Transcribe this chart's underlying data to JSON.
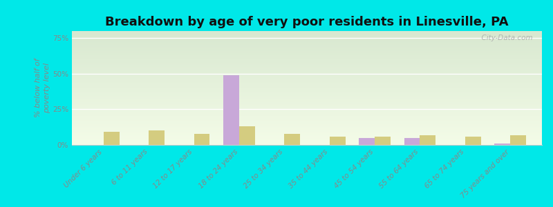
{
  "title": "Breakdown by age of very poor residents in Linesville, PA",
  "ylabel": "% below half of\npoverty level",
  "categories": [
    "Under 6 years",
    "6 to 11 years",
    "12 to 17 years",
    "18 to 24 years",
    "25 to 34 years",
    "35 to 44 years",
    "45 to 54 years",
    "55 to 64 years",
    "65 to 74 years",
    "75 years and over"
  ],
  "linesville_values": [
    0,
    0,
    0,
    49,
    0,
    0,
    5,
    5,
    0,
    1
  ],
  "pennsylvania_values": [
    9,
    10,
    8,
    13,
    8,
    6,
    6,
    7,
    6,
    7
  ],
  "linesville_color": "#c8a8d8",
  "pennsylvania_color": "#d4cc80",
  "bar_width": 0.35,
  "ylim": [
    0,
    80
  ],
  "yticks": [
    0,
    25,
    50,
    75
  ],
  "ytick_labels": [
    "0%",
    "25%",
    "50%",
    "75%"
  ],
  "background_color": "#00e8e8",
  "plot_bg_color_top": "#d8e8d0",
  "plot_bg_color_bottom": "#f4fce8",
  "title_fontsize": 13,
  "axis_label_fontsize": 8,
  "tick_label_fontsize": 7.5,
  "legend_fontsize": 9,
  "watermark": "  City-Data.com"
}
